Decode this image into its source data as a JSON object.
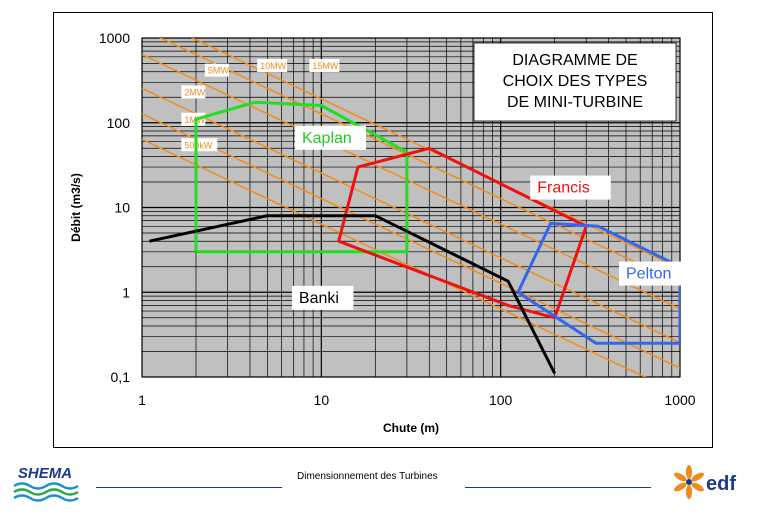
{
  "chart_data": {
    "type": "line",
    "title": "DIAGRAMME DE\nCHOIX DES TYPES\nDE MINI-TURBINE",
    "title_lines": [
      "DIAGRAMME DE",
      "CHOIX DES TYPES",
      "DE MINI-TURBINE"
    ],
    "xlabel": "Chute (m)",
    "ylabel": "Débit (m3/s)",
    "x_scale": "log",
    "y_scale": "log",
    "xlim": [
      1,
      1000
    ],
    "ylim": [
      0.1,
      1000
    ],
    "x_ticks": [
      1,
      10,
      100,
      1000
    ],
    "x_tick_labels": [
      "1",
      "10",
      "100",
      "1000"
    ],
    "y_ticks": [
      0.1,
      1,
      10,
      100,
      1000
    ],
    "y_tick_labels": [
      "0,1",
      "1",
      "10",
      "100",
      "1000"
    ],
    "grid": true,
    "colors": {
      "plot_bg": "#c0c0c0",
      "grid": "#000000",
      "power_lines": "#f28c1e",
      "kaplan": "#22dd22",
      "francis": "#ee1111",
      "pelton": "#3366ee",
      "banki": "#000000"
    },
    "power_lines": [
      {
        "label": "500kW",
        "kw": 500,
        "label_pos": [
          1.7,
          50
        ]
      },
      {
        "label": "1MW",
        "kw": 1000,
        "label_pos": [
          1.7,
          100
        ]
      },
      {
        "label": "2MW",
        "kw": 2000,
        "label_pos": [
          1.7,
          210
        ]
      },
      {
        "label": "5MW",
        "kw": 5000,
        "label_pos": [
          2.3,
          380
        ]
      },
      {
        "label": "10MW",
        "kw": 10000,
        "label_pos": [
          4.5,
          430
        ]
      },
      {
        "label": "15MW",
        "kw": 15000,
        "label_pos": [
          8.8,
          430
        ]
      }
    ],
    "series": [
      {
        "name": "Kaplan",
        "label_pos": [
          7.8,
          58
        ],
        "points": [
          [
            2,
            3
          ],
          [
            2,
            110
          ],
          [
            4.3,
            175
          ],
          [
            10,
            160
          ],
          [
            30,
            45
          ],
          [
            30,
            3
          ],
          [
            2,
            3
          ]
        ]
      },
      {
        "name": "Francis",
        "label_pos": [
          160,
          15
        ],
        "points": [
          [
            12.5,
            4
          ],
          [
            16,
            30
          ],
          [
            40,
            50
          ],
          [
            300,
            6
          ],
          [
            200,
            0.5
          ],
          [
            110,
            0.7
          ],
          [
            12.5,
            4
          ]
        ]
      },
      {
        "name": "Pelton",
        "label_pos": [
          500,
          1.45
        ],
        "points": [
          [
            125,
            1
          ],
          [
            190,
            6.5
          ],
          [
            350,
            6
          ],
          [
            1000,
            2
          ],
          [
            1000,
            0.25
          ],
          [
            340,
            0.25
          ],
          [
            125,
            1
          ]
        ]
      },
      {
        "name": "Banki",
        "label_pos": [
          7.5,
          0.75
        ],
        "points": [
          [
            1.1,
            4
          ],
          [
            5,
            8
          ],
          [
            20,
            8
          ],
          [
            110,
            1.35
          ],
          [
            200,
            0.11
          ]
        ]
      }
    ]
  },
  "footer": {
    "text": "Dimensionnement des Turbines",
    "left_logo_text": "SHEMA",
    "right_logo_text": "EDF"
  }
}
